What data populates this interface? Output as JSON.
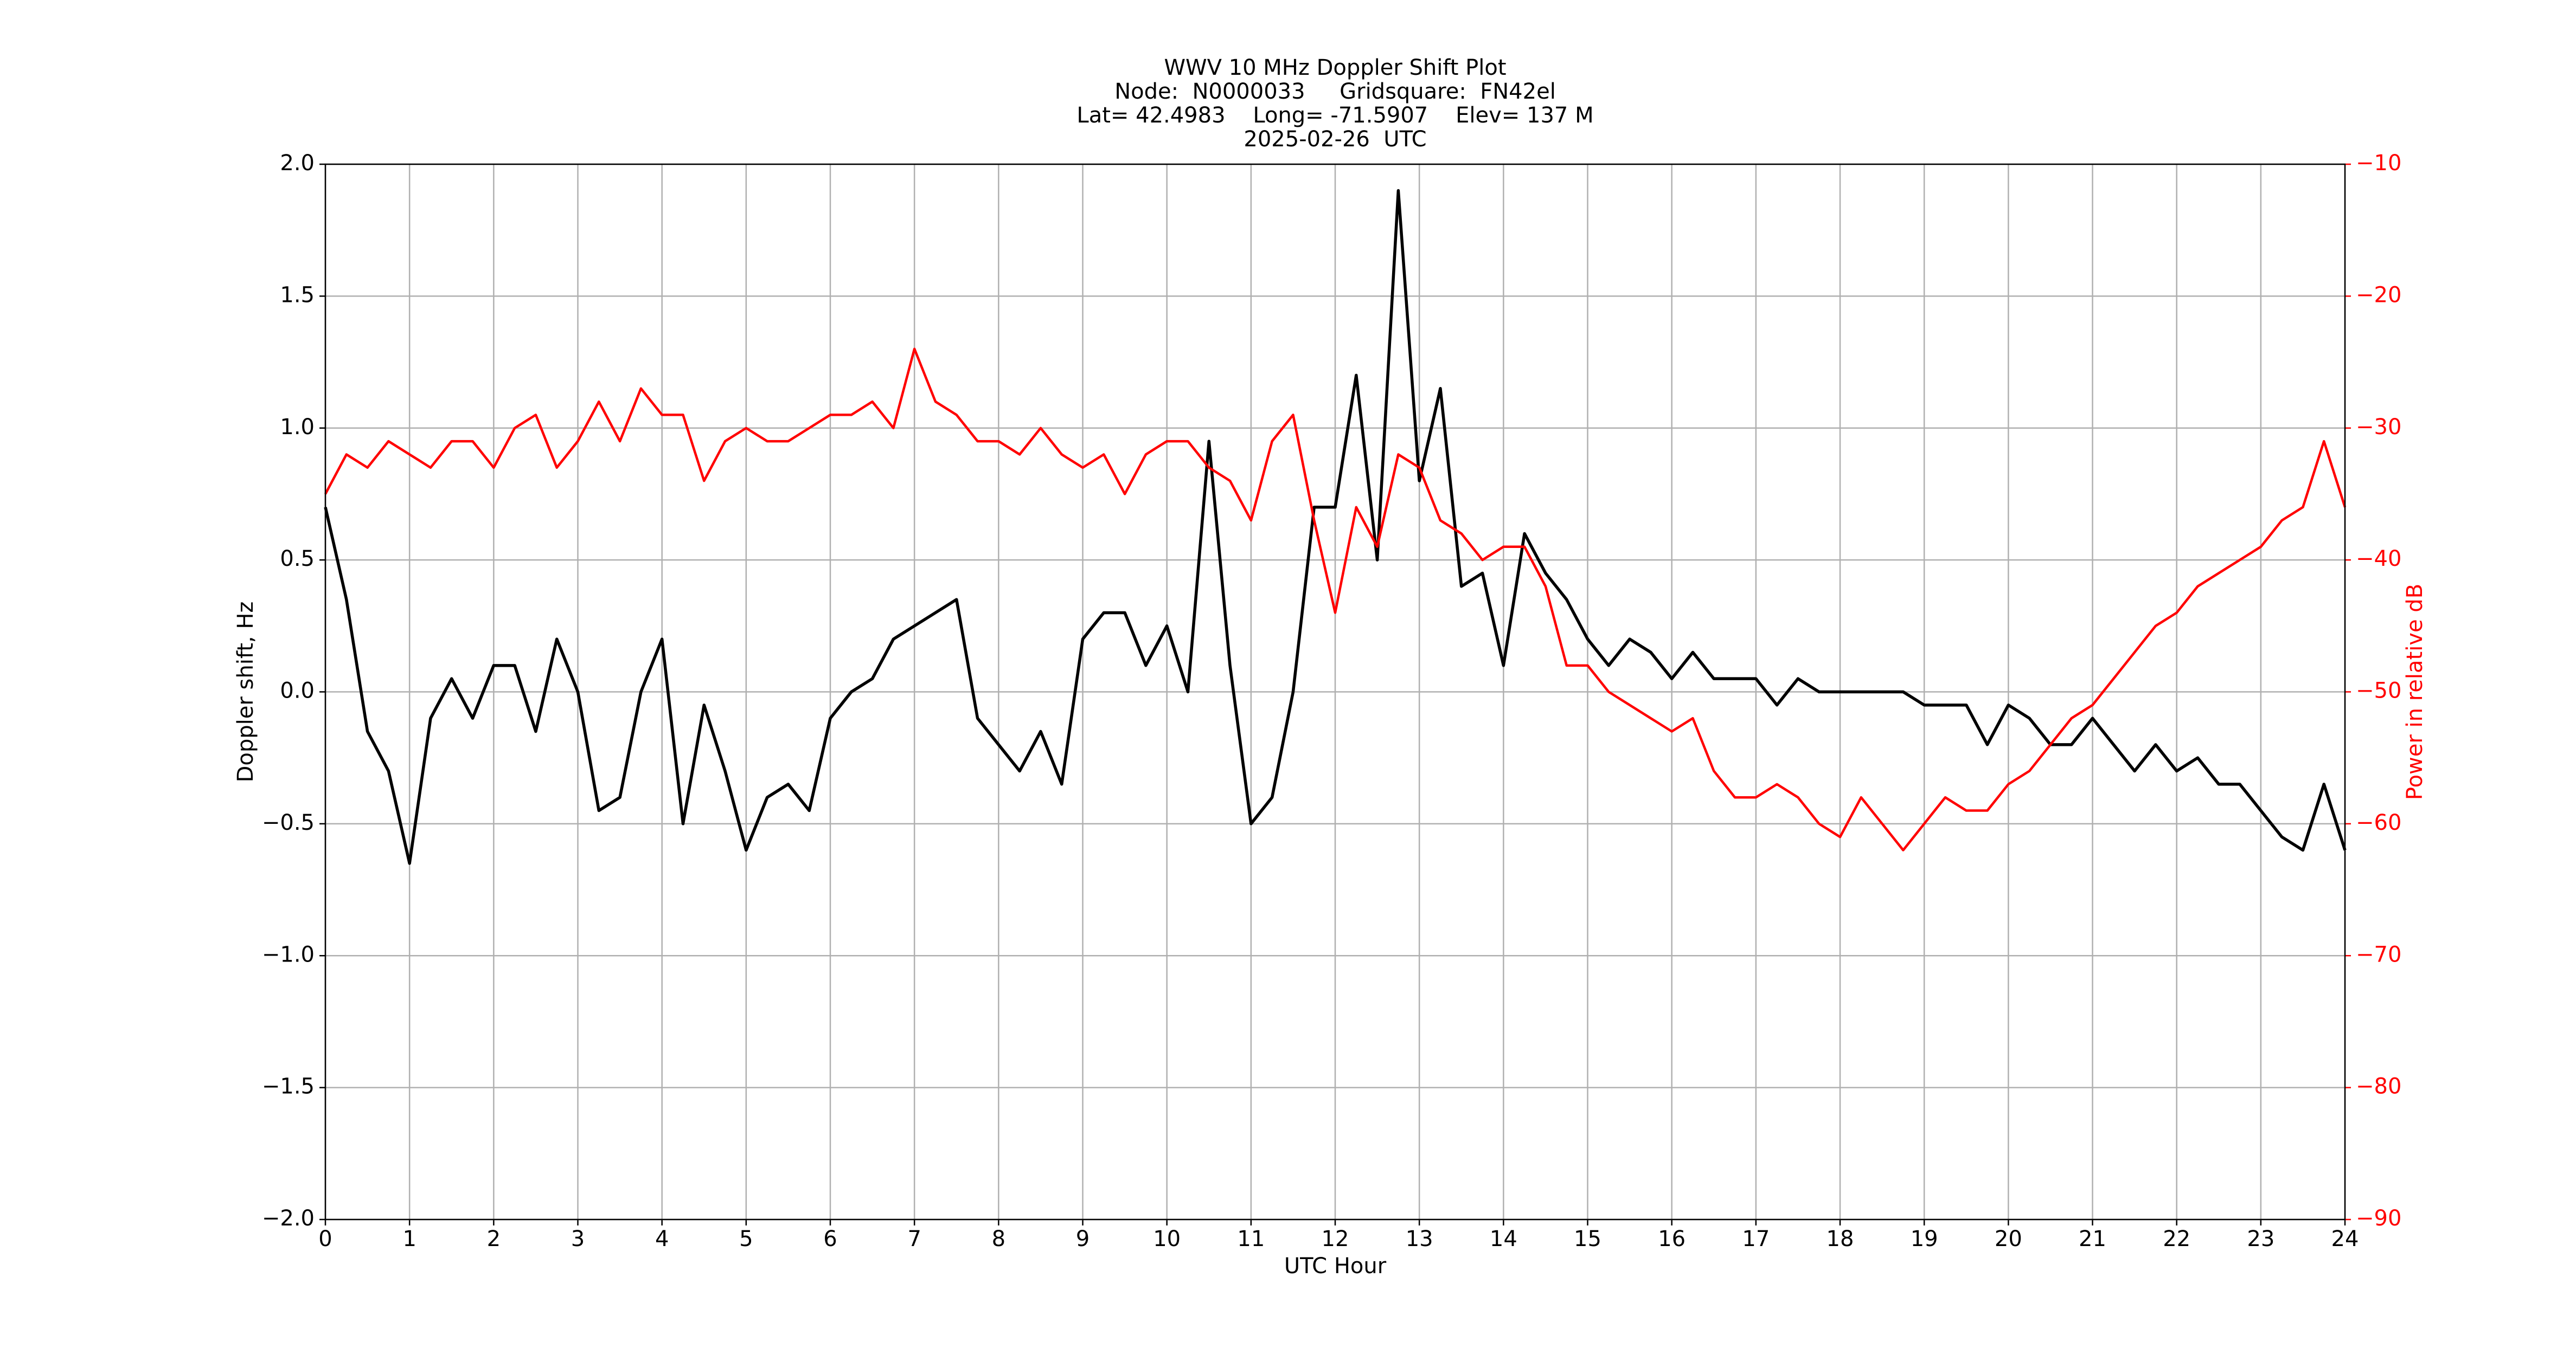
{
  "chart_data": {
    "type": "line",
    "title": [
      "WWV 10 MHz Doppler Shift Plot",
      "Node:  N0000033     Gridsquare:  FN42el",
      "Lat= 42.4983    Long= -71.5907    Elev= 137 M",
      "2025-02-26  UTC"
    ],
    "xlabel": "UTC Hour",
    "ylabel": "Doppler shift, Hz",
    "y2label": "Power in relative dB",
    "y2color": "#ff0000",
    "grid": true,
    "xlim": [
      0,
      24
    ],
    "xticks": [
      0,
      1,
      2,
      3,
      4,
      5,
      6,
      7,
      8,
      9,
      10,
      11,
      12,
      13,
      14,
      15,
      16,
      17,
      18,
      19,
      20,
      21,
      22,
      23,
      24
    ],
    "ylim": [
      -2,
      2
    ],
    "yticks": [
      {
        "value": -2,
        "label": "−2.0"
      },
      {
        "value": -1.5,
        "label": "−1.5"
      },
      {
        "value": -1,
        "label": "−1.0"
      },
      {
        "value": -0.5,
        "label": "−0.5"
      },
      {
        "value": 0,
        "label": "0.0"
      },
      0.5,
      {
        "value": 1,
        "label": "1.0"
      },
      1.5,
      {
        "value": 2,
        "label": "2.0"
      }
    ],
    "y2lim": [
      -90,
      -10
    ],
    "y2ticks": [
      {
        "value": -90,
        "label": "−90"
      },
      {
        "value": -80,
        "label": "−80"
      },
      {
        "value": -70,
        "label": "−70"
      },
      {
        "value": -60,
        "label": "−60"
      },
      {
        "value": -50,
        "label": "−50"
      },
      {
        "value": -40,
        "label": "−40"
      },
      {
        "value": -30,
        "label": "−30"
      },
      {
        "value": -20,
        "label": "−20"
      },
      {
        "value": -10,
        "label": "−10"
      }
    ],
    "x": [
      0,
      0.25,
      0.5,
      0.75,
      1,
      1.25,
      1.5,
      1.75,
      2,
      2.25,
      2.5,
      2.75,
      3,
      3.25,
      3.5,
      3.75,
      4,
      4.25,
      4.5,
      4.75,
      5,
      5.25,
      5.5,
      5.75,
      6,
      6.25,
      6.5,
      6.75,
      7,
      7.25,
      7.5,
      7.75,
      8,
      8.25,
      8.5,
      8.75,
      9,
      9.25,
      9.5,
      9.75,
      10,
      10.25,
      10.5,
      10.75,
      11,
      11.25,
      11.5,
      11.75,
      12,
      12.25,
      12.5,
      12.75,
      13,
      13.25,
      13.5,
      13.75,
      14,
      14.25,
      14.5,
      14.75,
      15,
      15.25,
      15.5,
      15.75,
      16,
      16.25,
      16.5,
      16.75,
      17,
      17.25,
      17.5,
      17.75,
      18,
      18.25,
      18.5,
      18.75,
      19,
      19.25,
      19.5,
      19.75,
      20,
      20.25,
      20.5,
      20.75,
      21,
      21.25,
      21.5,
      21.75,
      22,
      22.25,
      22.5,
      22.75,
      23,
      23.25,
      23.5,
      23.75,
      24
    ],
    "series": [
      {
        "name": "Doppler shift",
        "color": "#000000",
        "axis": "y",
        "values": [
          0.7,
          0.35,
          -0.15,
          -0.3,
          -0.65,
          -0.1,
          0.05,
          -0.1,
          0.1,
          0.1,
          -0.15,
          0.2,
          0.0,
          -0.45,
          -0.4,
          0.0,
          0.2,
          -0.5,
          -0.05,
          -0.3,
          -0.6,
          -0.4,
          -0.35,
          -0.45,
          -0.1,
          0.0,
          0.05,
          0.2,
          0.25,
          0.3,
          0.35,
          -0.1,
          -0.2,
          -0.3,
          -0.15,
          -0.35,
          0.2,
          0.3,
          0.3,
          0.1,
          0.25,
          0.0,
          0.95,
          0.1,
          -0.5,
          -0.4,
          0.0,
          0.7,
          0.7,
          1.2,
          0.5,
          1.9,
          0.8,
          1.15,
          0.4,
          0.45,
          0.1,
          0.6,
          0.45,
          0.35,
          0.2,
          0.1,
          0.2,
          0.15,
          0.05,
          0.15,
          0.05,
          0.05,
          0.05,
          -0.05,
          0.05,
          0.0,
          0.0,
          0.0,
          0.0,
          0.0,
          -0.05,
          -0.05,
          -0.05,
          -0.2,
          -0.05,
          -0.1,
          -0.2,
          -0.2,
          -0.1,
          -0.2,
          -0.3,
          -0.2,
          -0.3,
          -0.25,
          -0.35,
          -0.35,
          -0.45,
          -0.55,
          -0.6,
          -0.35,
          -0.6
        ]
      },
      {
        "name": "Power",
        "color": "#ff0000",
        "axis": "y2",
        "values": [
          -35,
          -32,
          -33,
          -31,
          -32,
          -33,
          -31,
          -31,
          -33,
          -30,
          -29,
          -33,
          -31,
          -28,
          -31,
          -27,
          -29,
          -29,
          -34,
          -31,
          -30,
          -31,
          -31,
          -30,
          -29,
          -29,
          -28,
          -30,
          -24,
          -28,
          -29,
          -31,
          -31,
          -32,
          -30,
          -32,
          -33,
          -32,
          -35,
          -32,
          -31,
          -31,
          -33,
          -34,
          -37,
          -31,
          -29,
          -37,
          -44,
          -36,
          -39,
          -32,
          -33,
          -37,
          -38,
          -40,
          -39,
          -39,
          -42,
          -48,
          -48,
          -50,
          -51,
          -52,
          -53,
          -52,
          -56,
          -58,
          -58,
          -57,
          -58,
          -60,
          -61,
          -58,
          -60,
          -62,
          -60,
          -58,
          -59,
          -59,
          -57,
          -56,
          -54,
          -52,
          -51,
          -49,
          -47,
          -45,
          -44,
          -42,
          -41,
          -40,
          -39,
          -37,
          -36,
          -31,
          -36
        ]
      }
    ]
  }
}
